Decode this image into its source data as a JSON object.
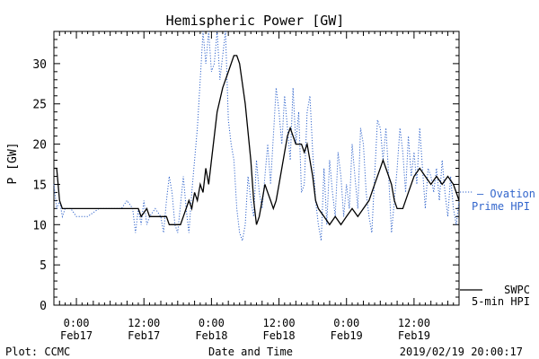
{
  "chart_data": {
    "type": "line",
    "title": "Hemispheric Power [GW]",
    "xlabel": "Date and Time",
    "ylabel": "P [GW]",
    "ylim": [
      0,
      34
    ],
    "y_ticks": [
      0,
      5,
      10,
      15,
      20,
      25,
      30
    ],
    "x_range": [
      "2019-02-16T20:00",
      "2019-02-19T20:00"
    ],
    "x_tick_labels": [
      {
        "time": "2019-02-17T00:00",
        "line1": "0:00",
        "line2": "Feb17"
      },
      {
        "time": "2019-02-17T12:00",
        "line1": "12:00",
        "line2": "Feb17"
      },
      {
        "time": "2019-02-18T00:00",
        "line1": "0:00",
        "line2": "Feb18"
      },
      {
        "time": "2019-02-18T12:00",
        "line1": "12:00",
        "line2": "Feb18"
      },
      {
        "time": "2019-02-19T00:00",
        "line1": "0:00",
        "line2": "Feb19"
      },
      {
        "time": "2019-02-19T12:00",
        "line1": "12:00",
        "line2": "Feb19"
      }
    ],
    "grid": false,
    "series": [
      {
        "name": "SWPC 5-min HPI",
        "color": "#000000",
        "style": "solid",
        "points": [
          [
            "2019-02-16T20:00",
            17
          ],
          [
            "2019-02-16T20:30",
            17
          ],
          [
            "2019-02-16T21:00",
            13
          ],
          [
            "2019-02-16T21:30",
            12
          ],
          [
            "2019-02-17T00:00",
            12
          ],
          [
            "2019-02-17T04:00",
            12
          ],
          [
            "2019-02-17T08:00",
            12
          ],
          [
            "2019-02-17T11:00",
            12
          ],
          [
            "2019-02-17T11:30",
            11
          ],
          [
            "2019-02-17T12:30",
            12
          ],
          [
            "2019-02-17T13:00",
            11
          ],
          [
            "2019-02-17T16:00",
            11
          ],
          [
            "2019-02-17T16:30",
            10
          ],
          [
            "2019-02-17T18:30",
            10
          ],
          [
            "2019-02-17T19:00",
            11
          ],
          [
            "2019-02-17T19:30",
            12
          ],
          [
            "2019-02-17T20:00",
            13
          ],
          [
            "2019-02-17T20:30",
            12
          ],
          [
            "2019-02-17T21:00",
            14
          ],
          [
            "2019-02-17T21:30",
            13
          ],
          [
            "2019-02-17T22:00",
            15
          ],
          [
            "2019-02-17T22:30",
            14
          ],
          [
            "2019-02-17T23:00",
            17
          ],
          [
            "2019-02-17T23:30",
            15
          ],
          [
            "2019-02-18T00:00",
            18
          ],
          [
            "2019-02-18T01:00",
            24
          ],
          [
            "2019-02-18T02:00",
            27
          ],
          [
            "2019-02-18T03:00",
            29
          ],
          [
            "2019-02-18T04:00",
            31
          ],
          [
            "2019-02-18T04:30",
            31
          ],
          [
            "2019-02-18T05:00",
            30
          ],
          [
            "2019-02-18T06:00",
            25
          ],
          [
            "2019-02-18T07:00",
            18
          ],
          [
            "2019-02-18T07:30",
            13
          ],
          [
            "2019-02-18T08:00",
            10
          ],
          [
            "2019-02-18T08:30",
            11
          ],
          [
            "2019-02-18T09:00",
            13
          ],
          [
            "2019-02-18T09:30",
            15
          ],
          [
            "2019-02-18T10:00",
            14
          ],
          [
            "2019-02-18T10:30",
            13
          ],
          [
            "2019-02-18T11:00",
            12
          ],
          [
            "2019-02-18T11:30",
            13
          ],
          [
            "2019-02-18T12:00",
            15
          ],
          [
            "2019-02-18T13:00",
            19
          ],
          [
            "2019-02-18T13:30",
            21
          ],
          [
            "2019-02-18T14:00",
            22
          ],
          [
            "2019-02-18T14:30",
            21
          ],
          [
            "2019-02-18T15:00",
            20
          ],
          [
            "2019-02-18T16:00",
            20
          ],
          [
            "2019-02-18T16:30",
            19
          ],
          [
            "2019-02-18T17:00",
            20
          ],
          [
            "2019-02-18T17:30",
            18
          ],
          [
            "2019-02-18T18:00",
            16
          ],
          [
            "2019-02-18T18:30",
            13
          ],
          [
            "2019-02-18T19:00",
            12
          ],
          [
            "2019-02-18T20:00",
            11
          ],
          [
            "2019-02-18T21:00",
            10
          ],
          [
            "2019-02-18T22:00",
            11
          ],
          [
            "2019-02-18T23:00",
            10
          ],
          [
            "2019-02-19T00:00",
            11
          ],
          [
            "2019-02-19T01:00",
            12
          ],
          [
            "2019-02-19T02:00",
            11
          ],
          [
            "2019-02-19T03:00",
            12
          ],
          [
            "2019-02-19T04:00",
            13
          ],
          [
            "2019-02-19T05:00",
            15
          ],
          [
            "2019-02-19T06:00",
            17
          ],
          [
            "2019-02-19T06:30",
            18
          ],
          [
            "2019-02-19T07:00",
            17
          ],
          [
            "2019-02-19T08:00",
            15
          ],
          [
            "2019-02-19T08:30",
            13
          ],
          [
            "2019-02-19T09:00",
            12
          ],
          [
            "2019-02-19T10:00",
            12
          ],
          [
            "2019-02-19T11:00",
            14
          ],
          [
            "2019-02-19T12:00",
            16
          ],
          [
            "2019-02-19T13:00",
            17
          ],
          [
            "2019-02-19T14:00",
            16
          ],
          [
            "2019-02-19T15:00",
            15
          ],
          [
            "2019-02-19T16:00",
            16
          ],
          [
            "2019-02-19T17:00",
            15
          ],
          [
            "2019-02-19T18:00",
            16
          ],
          [
            "2019-02-19T19:00",
            15
          ],
          [
            "2019-02-19T19:30",
            14
          ],
          [
            "2019-02-19T20:00",
            13
          ]
        ]
      },
      {
        "name": "Ovation Prime HPI",
        "color": "#3366cc",
        "style": "dotted",
        "points": [
          [
            "2019-02-16T20:00",
            15
          ],
          [
            "2019-02-16T20:30",
            12
          ],
          [
            "2019-02-16T21:00",
            13
          ],
          [
            "2019-02-16T21:30",
            11
          ],
          [
            "2019-02-16T22:00",
            12
          ],
          [
            "2019-02-16T23:00",
            12
          ],
          [
            "2019-02-17T00:00",
            11
          ],
          [
            "2019-02-17T02:00",
            11
          ],
          [
            "2019-02-17T04:00",
            12
          ],
          [
            "2019-02-17T06:00",
            12
          ],
          [
            "2019-02-17T08:00",
            12
          ],
          [
            "2019-02-17T09:00",
            13
          ],
          [
            "2019-02-17T10:00",
            12
          ],
          [
            "2019-02-17T10:30",
            9
          ],
          [
            "2019-02-17T11:00",
            12
          ],
          [
            "2019-02-17T11:30",
            10
          ],
          [
            "2019-02-17T12:00",
            13
          ],
          [
            "2019-02-17T12:30",
            10
          ],
          [
            "2019-02-17T13:00",
            11
          ],
          [
            "2019-02-17T14:00",
            12
          ],
          [
            "2019-02-17T15:00",
            11
          ],
          [
            "2019-02-17T15:30",
            9
          ],
          [
            "2019-02-17T16:00",
            13
          ],
          [
            "2019-02-17T16:30",
            16
          ],
          [
            "2019-02-17T17:00",
            14
          ],
          [
            "2019-02-17T17:30",
            10
          ],
          [
            "2019-02-17T18:00",
            9
          ],
          [
            "2019-02-17T19:00",
            16
          ],
          [
            "2019-02-17T19:30",
            12
          ],
          [
            "2019-02-17T20:00",
            9
          ],
          [
            "2019-02-17T20:30",
            14
          ],
          [
            "2019-02-17T21:00",
            18
          ],
          [
            "2019-02-17T21:30",
            22
          ],
          [
            "2019-02-17T22:00",
            28
          ],
          [
            "2019-02-17T22:30",
            34
          ],
          [
            "2019-02-17T23:00",
            30
          ],
          [
            "2019-02-17T23:30",
            34
          ],
          [
            "2019-02-18T00:00",
            29
          ],
          [
            "2019-02-18T00:30",
            30
          ],
          [
            "2019-02-18T01:00",
            34
          ],
          [
            "2019-02-18T01:30",
            28
          ],
          [
            "2019-02-18T02:00",
            31
          ],
          [
            "2019-02-18T02:30",
            34
          ],
          [
            "2019-02-18T03:00",
            23
          ],
          [
            "2019-02-18T03:30",
            20
          ],
          [
            "2019-02-18T04:00",
            18
          ],
          [
            "2019-02-18T04:30",
            12
          ],
          [
            "2019-02-18T05:00",
            9
          ],
          [
            "2019-02-18T05:30",
            8
          ],
          [
            "2019-02-18T06:00",
            10
          ],
          [
            "2019-02-18T06:30",
            16
          ],
          [
            "2019-02-18T07:00",
            13
          ],
          [
            "2019-02-18T07:30",
            11
          ],
          [
            "2019-02-18T08:00",
            18
          ],
          [
            "2019-02-18T08:30",
            14
          ],
          [
            "2019-02-18T09:00",
            12
          ],
          [
            "2019-02-18T09:30",
            16
          ],
          [
            "2019-02-18T10:00",
            20
          ],
          [
            "2019-02-18T10:30",
            15
          ],
          [
            "2019-02-18T11:00",
            21
          ],
          [
            "2019-02-18T11:30",
            27
          ],
          [
            "2019-02-18T12:00",
            24
          ],
          [
            "2019-02-18T12:30",
            20
          ],
          [
            "2019-02-18T13:00",
            26
          ],
          [
            "2019-02-18T13:30",
            22
          ],
          [
            "2019-02-18T14:00",
            18
          ],
          [
            "2019-02-18T14:30",
            27
          ],
          [
            "2019-02-18T15:00",
            20
          ],
          [
            "2019-02-18T15:30",
            24
          ],
          [
            "2019-02-18T16:00",
            14
          ],
          [
            "2019-02-18T16:30",
            15
          ],
          [
            "2019-02-18T17:00",
            24
          ],
          [
            "2019-02-18T17:30",
            26
          ],
          [
            "2019-02-18T18:00",
            19
          ],
          [
            "2019-02-18T18:30",
            13
          ],
          [
            "2019-02-18T19:00",
            10
          ],
          [
            "2019-02-18T19:30",
            8
          ],
          [
            "2019-02-18T20:00",
            17
          ],
          [
            "2019-02-18T20:30",
            10
          ],
          [
            "2019-02-18T21:00",
            18
          ],
          [
            "2019-02-18T21:30",
            14
          ],
          [
            "2019-02-18T22:00",
            11
          ],
          [
            "2019-02-18T22:30",
            19
          ],
          [
            "2019-02-18T23:00",
            16
          ],
          [
            "2019-02-18T23:30",
            11
          ],
          [
            "2019-02-19T00:00",
            15
          ],
          [
            "2019-02-19T00:30",
            12
          ],
          [
            "2019-02-19T01:00",
            20
          ],
          [
            "2019-02-19T01:30",
            16
          ],
          [
            "2019-02-19T02:00",
            12
          ],
          [
            "2019-02-19T02:30",
            22
          ],
          [
            "2019-02-19T03:00",
            20
          ],
          [
            "2019-02-19T03:30",
            14
          ],
          [
            "2019-02-19T04:00",
            11
          ],
          [
            "2019-02-19T04:30",
            9
          ],
          [
            "2019-02-19T05:00",
            16
          ],
          [
            "2019-02-19T05:30",
            23
          ],
          [
            "2019-02-19T06:00",
            22
          ],
          [
            "2019-02-19T06:30",
            18
          ],
          [
            "2019-02-19T07:00",
            22
          ],
          [
            "2019-02-19T07:30",
            16
          ],
          [
            "2019-02-19T08:00",
            9
          ],
          [
            "2019-02-19T08:30",
            13
          ],
          [
            "2019-02-19T09:00",
            17
          ],
          [
            "2019-02-19T09:30",
            22
          ],
          [
            "2019-02-19T10:00",
            19
          ],
          [
            "2019-02-19T10:30",
            14
          ],
          [
            "2019-02-19T11:00",
            21
          ],
          [
            "2019-02-19T11:30",
            16
          ],
          [
            "2019-02-19T12:00",
            19
          ],
          [
            "2019-02-19T12:30",
            15
          ],
          [
            "2019-02-19T13:00",
            22
          ],
          [
            "2019-02-19T13:30",
            17
          ],
          [
            "2019-02-19T14:00",
            12
          ],
          [
            "2019-02-19T14:30",
            17
          ],
          [
            "2019-02-19T15:00",
            16
          ],
          [
            "2019-02-19T15:30",
            14
          ],
          [
            "2019-02-19T16:00",
            17
          ],
          [
            "2019-02-19T16:30",
            13
          ],
          [
            "2019-02-19T17:00",
            18
          ],
          [
            "2019-02-19T17:30",
            14
          ],
          [
            "2019-02-19T18:00",
            11
          ],
          [
            "2019-02-19T18:30",
            16
          ],
          [
            "2019-02-19T19:00",
            12
          ],
          [
            "2019-02-19T19:30",
            10
          ],
          [
            "2019-02-19T20:00",
            13
          ]
        ]
      }
    ],
    "legend": [
      {
        "lines": [
          "— Ovation",
          "Prime HPI"
        ],
        "color": "#3366cc"
      },
      {
        "lines": [
          "SWPC",
          "5-min HPI"
        ],
        "color": "#000000"
      }
    ]
  },
  "footer": {
    "left": "Plot: CCMC",
    "center": "Date and Time",
    "right": "2019/02/19 20:00:17"
  }
}
